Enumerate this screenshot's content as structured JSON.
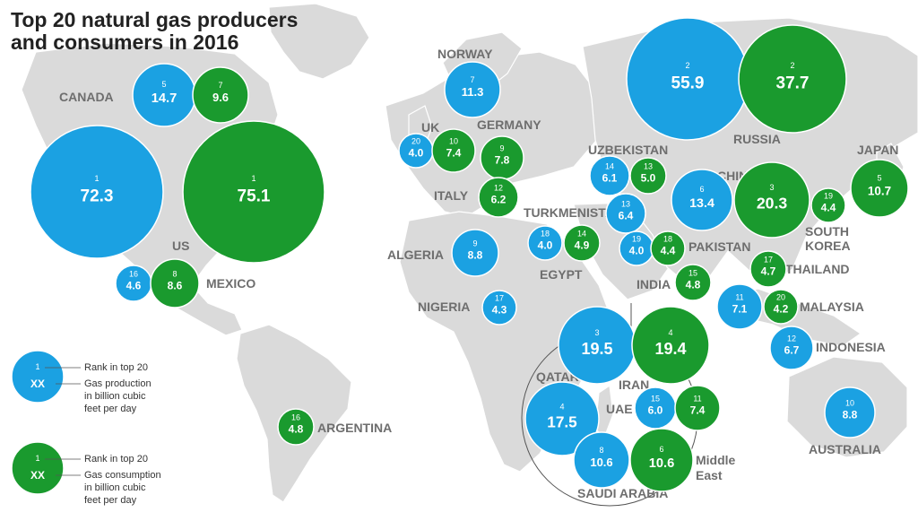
{
  "title_lines": [
    "Top 20 natural gas producers",
    "and consumers in 2016"
  ],
  "colors": {
    "production": "#1ba1e2",
    "consumption": "#1a9a2e",
    "land": "#dadada",
    "ocean": "#ffffff"
  },
  "countries": {
    "canada": "CANADA",
    "us": "US",
    "mexico": "MEXICO",
    "argentina": "ARGENTINA",
    "norway": "NORWAY",
    "uk": "UK",
    "germany": "GERMANY",
    "italy": "ITALY",
    "algeria": "ALGERIA",
    "nigeria": "NIGERIA",
    "egypt": "EGYPT",
    "turkmenistan": "TURKMENISTAN",
    "uzbekistan": "UZBEKISTAN",
    "russia": "RUSSIA",
    "china": "CHINA",
    "japan": "JAPAN",
    "south_korea_1": "SOUTH",
    "south_korea_2": "KOREA",
    "pakistan": "PAKISTAN",
    "india": "INDIA",
    "thailand": "THAILAND",
    "malaysia": "MALAYSIA",
    "indonesia": "INDONESIA",
    "australia": "AUSTRALIA",
    "qatar": "QATAR",
    "iran": "IRAN",
    "uae": "UAE",
    "saudi_arabia": "SAUDI ARABIA",
    "middle_east_1": "Middle",
    "middle_east_2": "East"
  },
  "bubbles": {
    "canada_prod": {
      "rank": "5",
      "value": "14.7"
    },
    "canada_cons": {
      "rank": "7",
      "value": "9.6"
    },
    "us_prod": {
      "rank": "1",
      "value": "72.3"
    },
    "us_cons": {
      "rank": "1",
      "value": "75.1"
    },
    "mexico_prod": {
      "rank": "16",
      "value": "4.6"
    },
    "mexico_cons": {
      "rank": "8",
      "value": "8.6"
    },
    "argentina_cons": {
      "rank": "16",
      "value": "4.8"
    },
    "norway_prod": {
      "rank": "7",
      "value": "11.3"
    },
    "uk_prod": {
      "rank": "20",
      "value": "4.0"
    },
    "uk_cons": {
      "rank": "10",
      "value": "7.4"
    },
    "germany_cons": {
      "rank": "9",
      "value": "7.8"
    },
    "italy_cons": {
      "rank": "12",
      "value": "6.2"
    },
    "algeria_prod": {
      "rank": "9",
      "value": "8.8"
    },
    "nigeria_prod": {
      "rank": "17",
      "value": "4.3"
    },
    "egypt_prod": {
      "rank": "18",
      "value": "4.0"
    },
    "egypt_cons": {
      "rank": "14",
      "value": "4.9"
    },
    "uzbekistan_prod": {
      "rank": "14",
      "value": "6.1"
    },
    "uzbekistan_cons": {
      "rank": "13",
      "value": "5.0"
    },
    "turkmenistan_prod": {
      "rank": "13",
      "value": "6.4"
    },
    "pakistan_prod": {
      "rank": "19",
      "value": "4.0"
    },
    "pakistan_cons": {
      "rank": "18",
      "value": "4.4"
    },
    "russia_prod": {
      "rank": "2",
      "value": "55.9"
    },
    "russia_cons": {
      "rank": "2",
      "value": "37.7"
    },
    "china_prod": {
      "rank": "6",
      "value": "13.4"
    },
    "china_cons": {
      "rank": "3",
      "value": "20.3"
    },
    "south_korea_cons": {
      "rank": "19",
      "value": "4.4"
    },
    "japan_cons": {
      "rank": "5",
      "value": "10.7"
    },
    "india_cons": {
      "rank": "15",
      "value": "4.8"
    },
    "thailand_cons": {
      "rank": "17",
      "value": "4.7"
    },
    "malaysia_prod": {
      "rank": "11",
      "value": "7.1"
    },
    "malaysia_cons": {
      "rank": "20",
      "value": "4.2"
    },
    "indonesia_prod": {
      "rank": "12",
      "value": "6.7"
    },
    "australia_prod": {
      "rank": "10",
      "value": "8.8"
    },
    "iran_prod": {
      "rank": "3",
      "value": "19.5"
    },
    "iran_cons": {
      "rank": "4",
      "value": "19.4"
    },
    "qatar_prod": {
      "rank": "4",
      "value": "17.5"
    },
    "uae_prod": {
      "rank": "15",
      "value": "6.0"
    },
    "uae_cons": {
      "rank": "11",
      "value": "7.4"
    },
    "saudi_prod": {
      "rank": "8",
      "value": "10.6"
    },
    "saudi_cons": {
      "rank": "6",
      "value": "10.6"
    }
  },
  "legend": {
    "rank_sample": "1",
    "value_sample": "XX",
    "prod_rank_label": "Rank in top 20",
    "prod_value_label": [
      "Gas production",
      "in billion cubic",
      "feet per day"
    ],
    "cons_rank_label": "Rank in top 20",
    "cons_value_label": [
      "Gas consumption",
      "in billion cubic",
      "feet per day"
    ]
  }
}
